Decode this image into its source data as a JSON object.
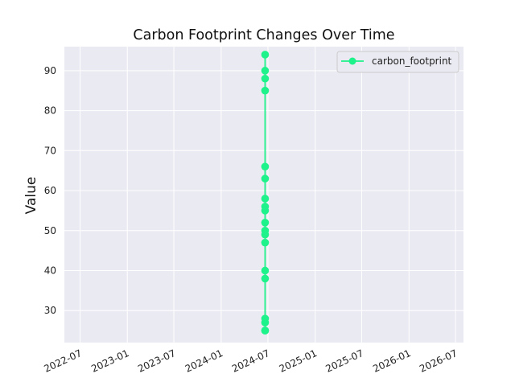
{
  "chart_data": {
    "type": "line",
    "title": "Carbon Footprint Changes Over Time",
    "xlabel": "",
    "ylabel": "Value",
    "x_axis": {
      "scale": "time",
      "range": [
        "2022-05-01",
        "2026-08-01"
      ],
      "ticks": [
        "2022-07-01",
        "2023-01-01",
        "2023-07-01",
        "2024-01-01",
        "2024-07-01",
        "2025-01-01",
        "2025-07-01",
        "2026-01-01",
        "2026-07-01"
      ],
      "tick_labels": [
        "2022-07",
        "2023-01",
        "2023-07",
        "2024-01",
        "2024-07",
        "2025-01",
        "2025-07",
        "2026-01",
        "2026-07"
      ]
    },
    "y_axis": {
      "ylim": [
        22,
        96
      ],
      "ticks": [
        30,
        40,
        50,
        60,
        70,
        80,
        90
      ],
      "tick_labels": [
        "30",
        "40",
        "50",
        "60",
        "70",
        "80",
        "90"
      ]
    },
    "grid": true,
    "legend_position": "top-right",
    "series": [
      {
        "name": "carbon_footprint",
        "color": "#1ef28a",
        "marker": "circle",
        "x": [
          "2024-06-20",
          "2024-06-20",
          "2024-06-20",
          "2024-06-20",
          "2024-06-20",
          "2024-06-20",
          "2024-06-20",
          "2024-06-20",
          "2024-06-20",
          "2024-06-20",
          "2024-06-20",
          "2024-06-20",
          "2024-06-20",
          "2024-06-20",
          "2024-06-20",
          "2024-06-20",
          "2024-06-20",
          "2024-06-20",
          "2024-06-20"
        ],
        "y": [
          94,
          90,
          88,
          85,
          66,
          63,
          58,
          56,
          55,
          52,
          50,
          49,
          47,
          40,
          38,
          28,
          27,
          25,
          25
        ]
      }
    ],
    "colors": {
      "plot_background": "#eaeaf2",
      "grid": "#ffffff",
      "legend_background": "#eaeaf2",
      "legend_border": "#cccccc"
    }
  }
}
